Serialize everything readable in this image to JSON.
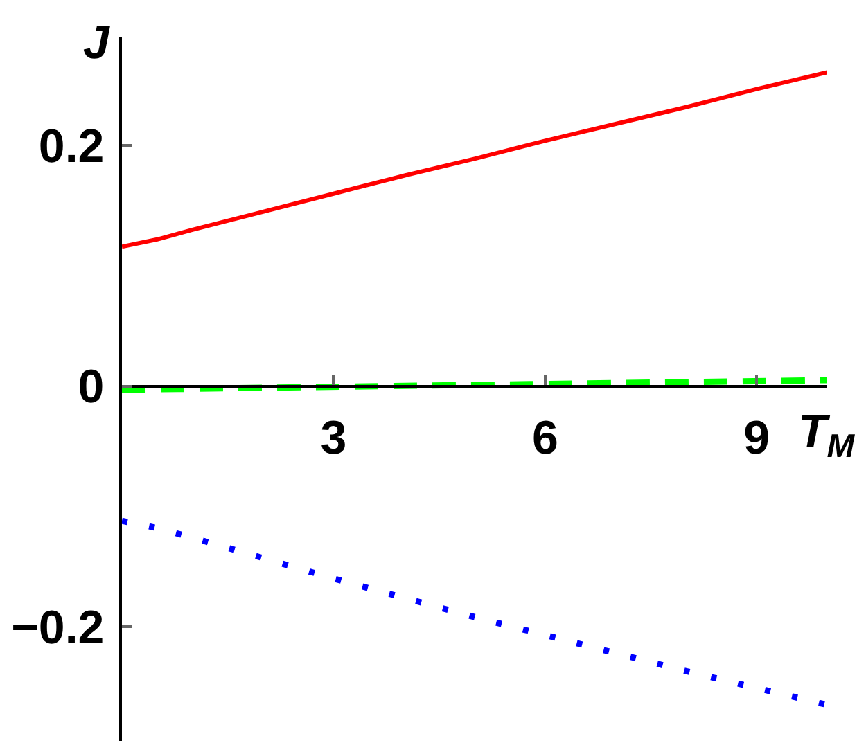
{
  "chart_data": {
    "type": "line",
    "xlabel": "T$_{M}$",
    "ylabel": "J",
    "xlim": [
      0,
      10
    ],
    "ylim": [
      -0.295,
      0.29
    ],
    "xticks": [
      3,
      6,
      9
    ],
    "yticks": [
      -0.2,
      0,
      0.2
    ],
    "series": [
      {
        "color": "#ff0000",
        "line_style": "solid",
        "x": [
          0,
          0.5,
          1,
          2,
          3,
          4,
          5,
          6,
          7,
          8,
          9,
          10
        ],
        "values": [
          0.116,
          0.122,
          0.13,
          0.145,
          0.16,
          0.175,
          0.189,
          0.204,
          0.218,
          0.232,
          0.247,
          0.261
        ]
      },
      {
        "color": "#00ff00",
        "line_style": "dashed",
        "x": [
          0,
          5,
          10
        ],
        "values": [
          -0.003,
          0.001,
          0.005
        ]
      },
      {
        "color": "#0000ff",
        "line_style": "dotted",
        "x": [
          0,
          0.5,
          1,
          2,
          3,
          4,
          5,
          6,
          7,
          8,
          9,
          10
        ],
        "values": [
          -0.112,
          -0.118,
          -0.126,
          -0.143,
          -0.16,
          -0.176,
          -0.192,
          -0.207,
          -0.222,
          -0.237,
          -0.251,
          -0.265
        ]
      }
    ]
  }
}
